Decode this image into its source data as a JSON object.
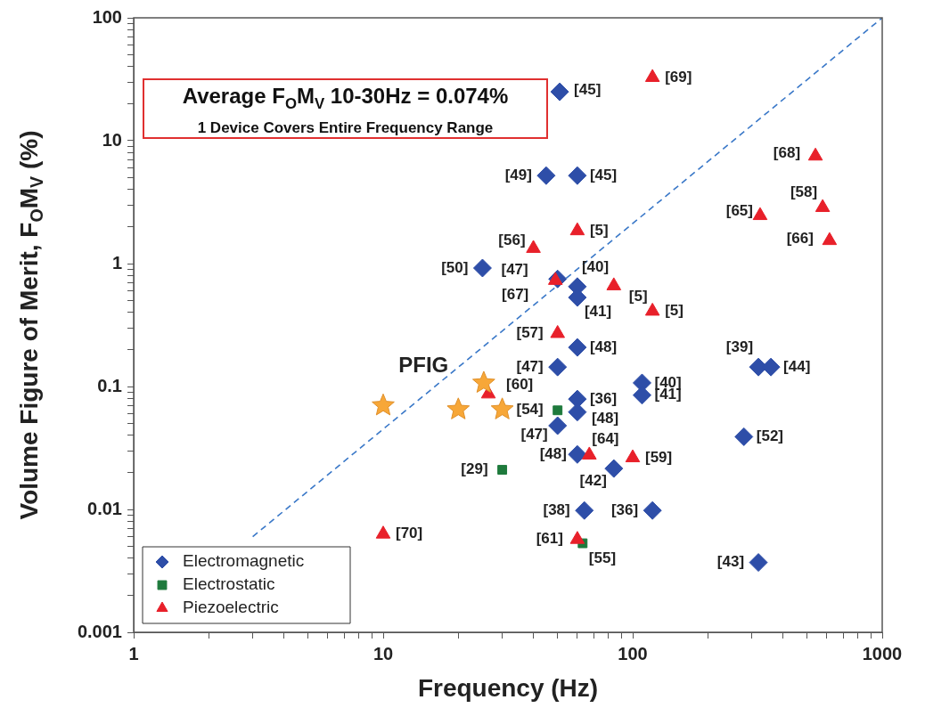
{
  "chart_data": {
    "type": "scatter",
    "xlabel": "Frequency (Hz)",
    "ylabel": "Volume Figure of Merit, F$_{O}$M$_{V}$ (%)",
    "log": "xy",
    "grid": false,
    "legend": "bottom left",
    "xlim": [
      1,
      1000
    ],
    "ylim": [
      0.001,
      100
    ],
    "xticks": [
      1,
      {
        "value": 2,
        "label": null
      },
      {
        "value": 3,
        "label": null
      },
      {
        "value": 4,
        "label": null
      },
      {
        "value": 5,
        "label": null
      },
      {
        "value": 6,
        "label": null
      },
      {
        "value": 7,
        "label": null
      },
      {
        "value": 8,
        "label": null
      },
      {
        "value": 9,
        "label": null
      },
      10,
      {
        "value": 20,
        "label": null
      },
      {
        "value": 30,
        "label": null
      },
      {
        "value": 40,
        "label": null
      },
      {
        "value": 50,
        "label": null
      },
      {
        "value": 60,
        "label": null
      },
      {
        "value": 70,
        "label": null
      },
      {
        "value": 80,
        "label": null
      },
      {
        "value": 90,
        "label": null
      },
      100,
      {
        "value": 200,
        "label": null
      },
      {
        "value": 300,
        "label": null
      },
      {
        "value": 400,
        "label": null
      },
      {
        "value": 500,
        "label": null
      },
      {
        "value": 600,
        "label": null
      },
      {
        "value": 700,
        "label": null
      },
      {
        "value": 800,
        "label": null
      },
      {
        "value": 900,
        "label": null
      },
      1000
    ],
    "yticks": [
      0.001,
      {
        "value": 0.002,
        "label": null
      },
      {
        "value": 0.003,
        "label": null
      },
      {
        "value": 0.004,
        "label": null
      },
      {
        "value": 0.005,
        "label": null
      },
      {
        "value": 0.006,
        "label": null
      },
      {
        "value": 0.007,
        "label": null
      },
      {
        "value": 0.008,
        "label": null
      },
      {
        "value": 0.009,
        "label": null
      },
      0.01,
      {
        "value": 0.02,
        "label": null
      },
      {
        "value": 0.03,
        "label": null
      },
      {
        "value": 0.04,
        "label": null
      },
      {
        "value": 0.05,
        "label": null
      },
      {
        "value": 0.06,
        "label": null
      },
      {
        "value": 0.07,
        "label": null
      },
      {
        "value": 0.08,
        "label": null
      },
      {
        "value": 0.09,
        "label": null
      },
      0.1,
      {
        "value": 0.2,
        "label": null
      },
      {
        "value": 0.3,
        "label": null
      },
      {
        "value": 0.4,
        "label": null
      },
      {
        "value": 0.5,
        "label": null
      },
      {
        "value": 0.6,
        "label": null
      },
      {
        "value": 0.7,
        "label": null
      },
      {
        "value": 0.8,
        "label": null
      },
      {
        "value": 0.9,
        "label": null
      },
      1,
      {
        "value": 2,
        "label": null
      },
      {
        "value": 3,
        "label": null
      },
      {
        "value": 4,
        "label": null
      },
      {
        "value": 5,
        "label": null
      },
      {
        "value": 6,
        "label": null
      },
      {
        "value": 7,
        "label": null
      },
      {
        "value": 8,
        "label": null
      },
      {
        "value": 9,
        "label": null
      },
      10,
      {
        "value": 20,
        "label": null
      },
      {
        "value": 30,
        "label": null
      },
      {
        "value": 40,
        "label": null
      },
      {
        "value": 50,
        "label": null
      },
      {
        "value": 60,
        "label": null
      },
      {
        "value": 70,
        "label": null
      },
      {
        "value": 80,
        "label": null
      },
      {
        "value": 90,
        "label": null
      },
      100
    ],
    "series": [
      {
        "type": "line",
        "color": "#3a78c8",
        "line_style": "dashed",
        "marker": "none",
        "x": [
          3,
          1000
        ],
        "values": [
          0.006,
          100
        ]
      },
      {
        "name": "Electromagnetic",
        "color": "#2e4ea8",
        "marker": "diamond",
        "x": [
          51,
          45,
          60,
          25,
          50,
          60,
          60,
          60,
          50,
          109,
          109,
          60,
          60,
          50,
          60,
          84,
          64,
          120,
          319,
          279,
          319,
          358
        ],
        "values": [
          25,
          5.2,
          5.2,
          0.92,
          0.75,
          0.65,
          0.53,
          0.208,
          0.144,
          0.107,
          0.085,
          0.079,
          0.062,
          0.048,
          0.028,
          0.0215,
          0.0098,
          0.0098,
          0.0037,
          0.039,
          0.144,
          0.144
        ]
      },
      {
        "name": "Electrostatic",
        "color": "#1e7a3c",
        "marker": "square",
        "x": [
          50,
          30,
          63
        ],
        "values": [
          0.064,
          0.021,
          0.0053
        ]
      },
      {
        "name": "Piezoelectric",
        "color": "#e8202a",
        "marker": "triangle",
        "x": [
          120,
          540,
          577,
          324,
          615,
          60,
          40,
          49,
          84,
          120,
          50,
          26.4,
          67,
          100,
          10,
          60
        ],
        "values": [
          32.7,
          7.5,
          2.86,
          2.46,
          1.54,
          1.85,
          1.33,
          0.73,
          0.66,
          0.41,
          0.27,
          0.087,
          0.0277,
          0.0263,
          0.0063,
          0.0057
        ]
      },
      {
        "color": "#f7a738",
        "marker": "star",
        "x": [
          10,
          25.3,
          20,
          30
        ],
        "values": [
          0.07,
          0.107,
          0.065,
          0.065
        ]
      }
    ],
    "annotations": [
      "Average F$_{O}$M$_{V}$ 10-30Hz = 0.074%",
      "1 Device Covers Entire Frequency Range",
      {
        "text": "[45]",
        "x": 51,
        "y": 25
      },
      {
        "text": "[69]",
        "x": 120,
        "y": 32.7
      },
      {
        "text": "[49]",
        "x": 45,
        "y": 5.2
      },
      {
        "text": "[45]",
        "x": 60,
        "y": 5.2
      },
      {
        "text": "[68]",
        "x": 540,
        "y": 7.5
      },
      {
        "text": "[58]",
        "x": 577,
        "y": 2.86
      },
      {
        "text": "[65]",
        "x": 324,
        "y": 2.46
      },
      {
        "text": "[66]",
        "x": 615,
        "y": 1.54
      },
      {
        "text": "[5]",
        "x": 60,
        "y": 1.85
      },
      {
        "text": "[56]",
        "x": 40,
        "y": 1.33
      },
      {
        "text": "[50]",
        "x": 25,
        "y": 0.92
      },
      {
        "text": "[47]",
        "x": 50,
        "y": 0.75
      },
      {
        "text": "[40]",
        "x": 60,
        "y": 0.65
      },
      {
        "text": "[67]",
        "x": 49,
        "y": 0.73
      },
      {
        "text": "[5]",
        "x": 84,
        "y": 0.66
      },
      {
        "text": "[41]",
        "x": 60,
        "y": 0.53
      },
      {
        "text": "[5]",
        "x": 120,
        "y": 0.41
      },
      {
        "text": "[57]",
        "x": 50,
        "y": 0.27
      },
      {
        "text": "[48]",
        "x": 60,
        "y": 0.208
      },
      {
        "text": "[47]",
        "x": 50,
        "y": 0.144
      },
      {
        "text": "[39]",
        "x": 319,
        "y": 0.144
      },
      {
        "text": "[44]",
        "x": 358,
        "y": 0.144
      },
      {
        "text": "[40]",
        "x": 109,
        "y": 0.107
      },
      {
        "text": "[41]",
        "x": 109,
        "y": 0.085
      },
      {
        "text": "[60]",
        "x": 26.4,
        "y": 0.087
      },
      {
        "text": "[36]",
        "x": 60,
        "y": 0.079
      },
      {
        "text": "[54]",
        "x": 50,
        "y": 0.064
      },
      {
        "text": "[48]",
        "x": 60,
        "y": 0.062
      },
      {
        "text": "[47]",
        "x": 50,
        "y": 0.048
      },
      {
        "text": "[52]",
        "x": 279,
        "y": 0.039
      },
      {
        "text": "[64]",
        "x": 67,
        "y": 0.0277
      },
      {
        "text": "[48]",
        "x": 60,
        "y": 0.028
      },
      {
        "text": "[59]",
        "x": 100,
        "y": 0.0263
      },
      {
        "text": "[42]",
        "x": 84,
        "y": 0.0215
      },
      {
        "text": "[29]",
        "x": 30,
        "y": 0.021
      },
      {
        "text": "[38]",
        "x": 64,
        "y": 0.0098
      },
      {
        "text": "[36]",
        "x": 120,
        "y": 0.0098
      },
      {
        "text": "[70]",
        "x": 10,
        "y": 0.0063
      },
      {
        "text": "[61]",
        "x": 60,
        "y": 0.0057
      },
      {
        "text": "[55]",
        "x": 63,
        "y": 0.0053
      },
      {
        "text": "[43]",
        "x": 319,
        "y": 0.0037
      },
      {
        "text": "PFIG",
        "x": 20,
        "y": 0.065
      }
    ]
  }
}
